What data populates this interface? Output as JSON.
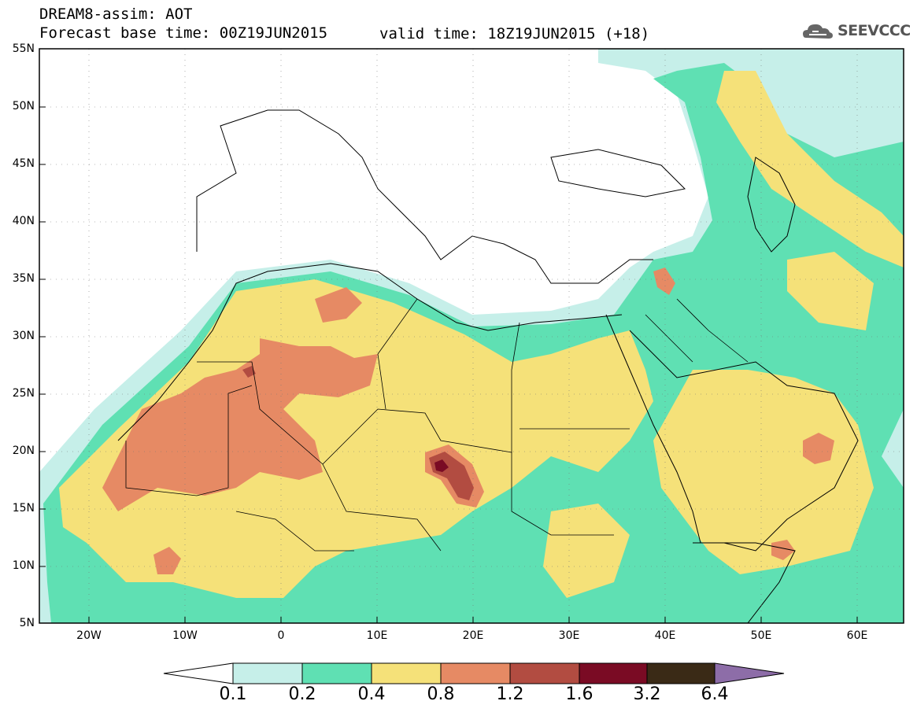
{
  "header": {
    "title": "DREAM8-assim: AOT",
    "base_time": "Forecast base time: 00Z19JUN2015",
    "valid_time": "valid time: 18Z19JUN2015 (+18)",
    "logo_text": "SEEVCCC"
  },
  "map": {
    "lat_labels": [
      "55N",
      "50N",
      "45N",
      "40N",
      "35N",
      "30N",
      "25N",
      "20N",
      "15N",
      "10N",
      "5N"
    ],
    "lon_labels": [
      "20W",
      "10W",
      "0",
      "10E",
      "20E",
      "30E",
      "40E",
      "50E",
      "60E"
    ],
    "lon_range": [
      -25,
      65
    ],
    "lat_range": [
      5,
      55
    ]
  },
  "colorbar": {
    "levels": [
      "0.1",
      "0.2",
      "0.4",
      "0.8",
      "1.2",
      "1.6",
      "3.2",
      "6.4"
    ],
    "colors": [
      "#c6efe9",
      "#5fe0b3",
      "#f5e179",
      "#e68a64",
      "#b24c41",
      "#7a0b24",
      "#3a2a16",
      "#8d6da8"
    ]
  }
}
